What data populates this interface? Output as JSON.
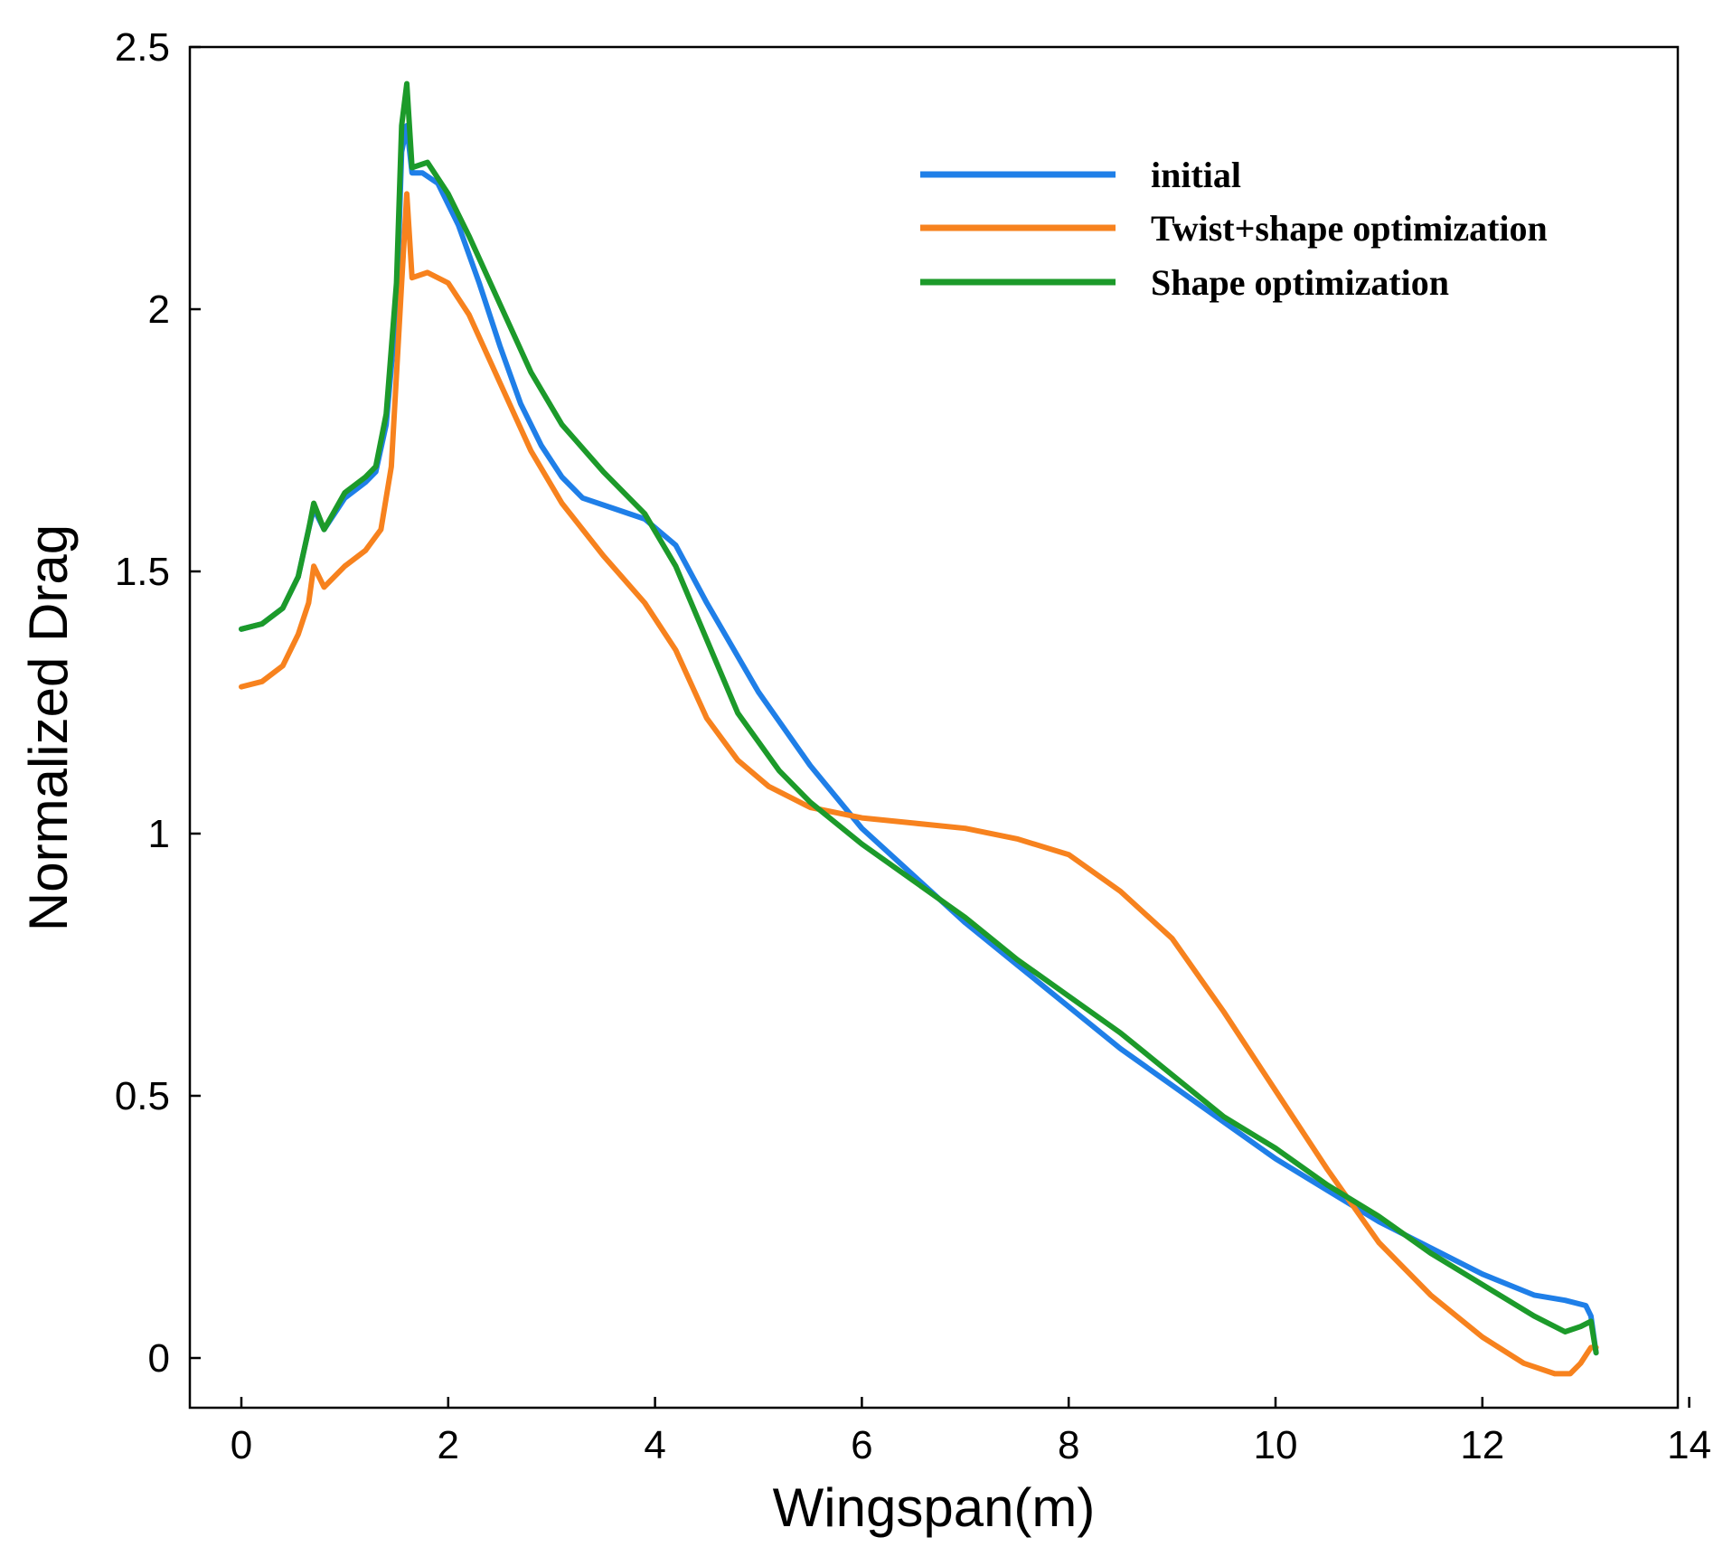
{
  "chart_data": {
    "type": "line",
    "title": "",
    "xlabel": "Wingspan(m)",
    "ylabel": "Normalized Drag",
    "xlim": [
      -0.5,
      14
    ],
    "ylim": [
      -0.1,
      2.5
    ],
    "xticks": [
      0,
      2,
      4,
      6,
      8,
      10,
      12,
      14
    ],
    "xtick_labels": [
      "0",
      "2",
      "4",
      "6",
      "8",
      "10",
      "12",
      "14"
    ],
    "yticks": [
      0,
      0.5,
      1,
      1.5,
      2,
      2.5
    ],
    "ytick_labels": [
      "0",
      "0.5",
      "1",
      "1.5",
      "2",
      "2.5"
    ],
    "grid": false,
    "legend_position": "top-right",
    "series": [
      {
        "name": "initial",
        "color": "#1f7fe8",
        "points": [
          [
            0,
            1.39
          ],
          [
            0.2,
            1.4
          ],
          [
            0.4,
            1.43
          ],
          [
            0.55,
            1.49
          ],
          [
            0.65,
            1.58
          ],
          [
            0.7,
            1.62
          ],
          [
            0.8,
            1.58
          ],
          [
            1.0,
            1.64
          ],
          [
            1.2,
            1.67
          ],
          [
            1.3,
            1.69
          ],
          [
            1.4,
            1.78
          ],
          [
            1.5,
            2.0
          ],
          [
            1.55,
            2.3
          ],
          [
            1.6,
            2.35
          ],
          [
            1.65,
            2.26
          ],
          [
            1.75,
            2.26
          ],
          [
            1.9,
            2.24
          ],
          [
            2.1,
            2.16
          ],
          [
            2.3,
            2.05
          ],
          [
            2.5,
            1.93
          ],
          [
            2.7,
            1.82
          ],
          [
            2.9,
            1.74
          ],
          [
            3.1,
            1.68
          ],
          [
            3.3,
            1.64
          ],
          [
            3.6,
            1.62
          ],
          [
            3.9,
            1.6
          ],
          [
            4.2,
            1.55
          ],
          [
            4.5,
            1.44
          ],
          [
            5.0,
            1.27
          ],
          [
            5.5,
            1.13
          ],
          [
            6.0,
            1.01
          ],
          [
            6.5,
            0.92
          ],
          [
            7.0,
            0.83
          ],
          [
            7.5,
            0.75
          ],
          [
            8.0,
            0.67
          ],
          [
            8.5,
            0.59
          ],
          [
            9.0,
            0.52
          ],
          [
            9.5,
            0.45
          ],
          [
            10.0,
            0.38
          ],
          [
            10.5,
            0.32
          ],
          [
            11.0,
            0.26
          ],
          [
            11.5,
            0.21
          ],
          [
            12.0,
            0.16
          ],
          [
            12.5,
            0.12
          ],
          [
            12.8,
            0.11
          ],
          [
            13.0,
            0.1
          ],
          [
            13.05,
            0.08
          ],
          [
            13.1,
            0.01
          ]
        ]
      },
      {
        "name": "Twist+shape optimization",
        "color": "#f7821e",
        "points": [
          [
            0,
            1.28
          ],
          [
            0.2,
            1.29
          ],
          [
            0.4,
            1.32
          ],
          [
            0.55,
            1.38
          ],
          [
            0.65,
            1.44
          ],
          [
            0.7,
            1.51
          ],
          [
            0.8,
            1.47
          ],
          [
            1.0,
            1.51
          ],
          [
            1.2,
            1.54
          ],
          [
            1.35,
            1.58
          ],
          [
            1.45,
            1.7
          ],
          [
            1.55,
            2.05
          ],
          [
            1.6,
            2.22
          ],
          [
            1.65,
            2.06
          ],
          [
            1.8,
            2.07
          ],
          [
            2.0,
            2.05
          ],
          [
            2.2,
            1.99
          ],
          [
            2.5,
            1.86
          ],
          [
            2.8,
            1.73
          ],
          [
            3.1,
            1.63
          ],
          [
            3.5,
            1.53
          ],
          [
            3.9,
            1.44
          ],
          [
            4.2,
            1.35
          ],
          [
            4.5,
            1.22
          ],
          [
            4.8,
            1.14
          ],
          [
            5.1,
            1.09
          ],
          [
            5.5,
            1.05
          ],
          [
            6.0,
            1.03
          ],
          [
            6.5,
            1.02
          ],
          [
            7.0,
            1.01
          ],
          [
            7.5,
            0.99
          ],
          [
            8.0,
            0.96
          ],
          [
            8.5,
            0.89
          ],
          [
            9.0,
            0.8
          ],
          [
            9.5,
            0.66
          ],
          [
            10.0,
            0.51
          ],
          [
            10.5,
            0.36
          ],
          [
            11.0,
            0.22
          ],
          [
            11.5,
            0.12
          ],
          [
            12.0,
            0.04
          ],
          [
            12.4,
            -0.01
          ],
          [
            12.7,
            -0.03
          ],
          [
            12.85,
            -0.03
          ],
          [
            12.95,
            -0.01
          ],
          [
            13.05,
            0.02
          ],
          [
            13.1,
            0.02
          ]
        ]
      },
      {
        "name": "Shape optimization",
        "color": "#1c9a2a",
        "points": [
          [
            0,
            1.39
          ],
          [
            0.2,
            1.4
          ],
          [
            0.4,
            1.43
          ],
          [
            0.55,
            1.49
          ],
          [
            0.65,
            1.58
          ],
          [
            0.7,
            1.63
          ],
          [
            0.8,
            1.58
          ],
          [
            1.0,
            1.65
          ],
          [
            1.2,
            1.68
          ],
          [
            1.3,
            1.7
          ],
          [
            1.4,
            1.8
          ],
          [
            1.5,
            2.05
          ],
          [
            1.55,
            2.35
          ],
          [
            1.6,
            2.43
          ],
          [
            1.65,
            2.27
          ],
          [
            1.8,
            2.28
          ],
          [
            2.0,
            2.22
          ],
          [
            2.2,
            2.14
          ],
          [
            2.5,
            2.01
          ],
          [
            2.8,
            1.88
          ],
          [
            3.1,
            1.78
          ],
          [
            3.5,
            1.69
          ],
          [
            3.9,
            1.61
          ],
          [
            4.2,
            1.51
          ],
          [
            4.5,
            1.37
          ],
          [
            4.8,
            1.23
          ],
          [
            5.2,
            1.12
          ],
          [
            5.5,
            1.06
          ],
          [
            6.0,
            0.98
          ],
          [
            6.5,
            0.91
          ],
          [
            7.0,
            0.84
          ],
          [
            7.5,
            0.76
          ],
          [
            8.0,
            0.69
          ],
          [
            8.5,
            0.62
          ],
          [
            9.0,
            0.54
          ],
          [
            9.5,
            0.46
          ],
          [
            10.0,
            0.4
          ],
          [
            10.5,
            0.33
          ],
          [
            11.0,
            0.27
          ],
          [
            11.5,
            0.2
          ],
          [
            12.0,
            0.14
          ],
          [
            12.5,
            0.08
          ],
          [
            12.8,
            0.05
          ],
          [
            12.95,
            0.06
          ],
          [
            13.05,
            0.07
          ],
          [
            13.1,
            0.01
          ]
        ]
      }
    ]
  }
}
